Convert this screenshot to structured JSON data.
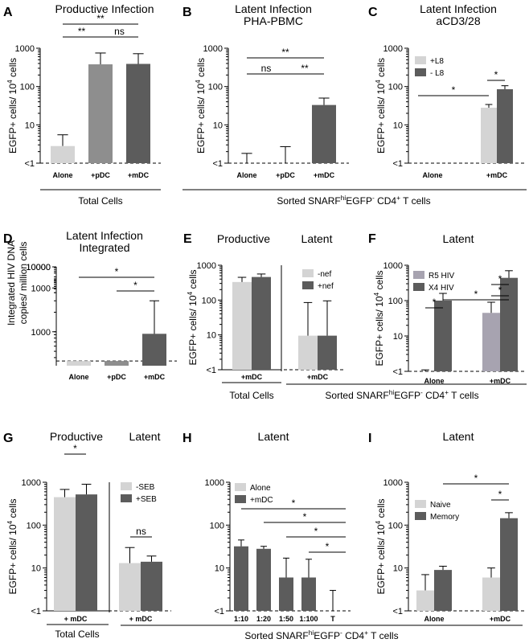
{
  "figure": {
    "bottom_group_label": "Sorted SNARF^hiEGFP^- CD4^+ T cells",
    "low_tick_label": "<1",
    "colors": {
      "light": "#d4d4d4",
      "mid": "#8e8e8e",
      "dark": "#5c5c5c",
      "purple": "#a7a3b0"
    }
  },
  "chart_data": [
    {
      "panel": "A",
      "type": "bar",
      "title": [
        "Productive Infection"
      ],
      "ylabel": "EGFP+ cells/ 10^4 cells",
      "yscale": "log",
      "ylim": [
        1,
        1000
      ],
      "floor_label": "<1",
      "categories": [
        "Alone",
        "+pDC",
        "+mDC"
      ],
      "series": [
        {
          "values": [
            2.8,
            380,
            390
          ],
          "errors": [
            5.5,
            750,
            720
          ]
        }
      ],
      "group_labels": [
        "Total Cells"
      ],
      "significance": [
        {
          "from": "Alone",
          "to": "+pDC",
          "label": "**"
        },
        {
          "from": "+pDC",
          "to": "+mDC",
          "label": "ns"
        },
        {
          "from": "Alone",
          "to": "+mDC",
          "label": "**"
        }
      ]
    },
    {
      "panel": "B",
      "type": "bar",
      "title": [
        "Latent Infection",
        "PHA-PBMC"
      ],
      "ylabel": "EGFP+ cells/ 10^4 cells",
      "yscale": "log",
      "ylim": [
        1,
        1000
      ],
      "floor_label": "<1",
      "categories": [
        "Alone",
        "+pDC",
        "+mDC"
      ],
      "series": [
        {
          "values": [
            1,
            1,
            33
          ],
          "errors": [
            1.8,
            2.7,
            50
          ]
        }
      ],
      "significance": [
        {
          "from": "Alone",
          "to": "+pDC",
          "label": "ns"
        },
        {
          "from": "+pDC",
          "to": "+mDC",
          "label": "**"
        },
        {
          "from": "Alone",
          "to": "+mDC",
          "label": "**"
        }
      ]
    },
    {
      "panel": "C",
      "type": "bar",
      "title": [
        "Latent Infection",
        "aCD3/28"
      ],
      "ylabel": "EGFP+ cells/ 10^4 cells",
      "yscale": "log",
      "ylim": [
        1,
        1000
      ],
      "floor_label": "<1",
      "categories": [
        "Alone",
        "+mDC"
      ],
      "legend": [
        "+L8",
        "- L8"
      ],
      "series": [
        {
          "name": "+L8",
          "values": [
            1,
            28
          ],
          "errors": [
            1,
            34
          ]
        },
        {
          "name": "- L8",
          "values": [
            1,
            85
          ],
          "errors": [
            1,
            105
          ]
        }
      ],
      "significance": [
        {
          "from": "Alone",
          "to": "+mDC +L8",
          "label": "*"
        },
        {
          "from": "+mDC +L8",
          "to": "+mDC - L8",
          "label": "*"
        }
      ]
    },
    {
      "panel": "D",
      "type": "bar",
      "title": [
        "Latent Infection",
        "Integrated"
      ],
      "ylabel": "Integrated HIV DNA copies/ million cells",
      "yscale": "log",
      "ylim": [
        300,
        10000
      ],
      "categories": [
        "Alone",
        "+pDC",
        "+mDC"
      ],
      "series": [
        {
          "values": [
            355,
            355,
            930
          ],
          "errors": [
            355,
            355,
            3000
          ]
        }
      ],
      "significance": [
        {
          "from": "Alone",
          "to": "+mDC",
          "label": "*"
        },
        {
          "from": "+pDC",
          "to": "+mDC",
          "label": "*"
        }
      ]
    },
    {
      "panel": "E",
      "type": "bar",
      "title": [
        "Productive",
        "Latent"
      ],
      "ylabel": "EGFP+ cells/ 10^4 cells",
      "yscale": "log",
      "ylim": [
        1,
        1000
      ],
      "floor_label": "<1",
      "categories": [
        "+mDC",
        "+mDC"
      ],
      "legend": [
        "-nef",
        "+nef"
      ],
      "series": [
        {
          "name": "-nef",
          "values": [
            330,
            9.5
          ],
          "errors": [
            450,
            85
          ]
        },
        {
          "name": "+nef",
          "values": [
            460,
            9.5
          ],
          "errors": [
            560,
            95
          ]
        }
      ],
      "group_labels": [
        "Total Cells"
      ]
    },
    {
      "panel": "F",
      "type": "bar",
      "title": [
        "Latent"
      ],
      "ylabel": "EGFP+ cells/ 10^4 cells",
      "yscale": "log",
      "ylim": [
        1,
        1000
      ],
      "floor_label": "<1",
      "categories": [
        "Alone",
        "+mDC"
      ],
      "legend": [
        "R5 HIV",
        "X4 HIV"
      ],
      "series": [
        {
          "name": "R5 HIV",
          "values": [
            1,
            45
          ],
          "errors": [
            1.1,
            90
          ]
        },
        {
          "name": "X4 HIV",
          "values": [
            100,
            440
          ],
          "errors": [
            160,
            700
          ]
        }
      ],
      "significance": [
        {
          "from": "Alone R5 HIV",
          "to": "Alone X4 HIV",
          "label": "*"
        },
        {
          "from": "Alone X4 HIV",
          "to": "+mDC X4 HIV",
          "label": "*"
        },
        {
          "from": "+mDC R5 HIV",
          "to": "+mDC X4 HIV",
          "label": "*"
        },
        {
          "from": "+mDC R5 HIV",
          "to": "+mDC X4 HIV",
          "label": "*"
        }
      ]
    },
    {
      "panel": "G",
      "type": "bar",
      "title": [
        "Productive",
        "Latent"
      ],
      "ylabel": "EGFP+ cells/ 10^4 cells",
      "yscale": "log",
      "ylim": [
        1,
        1000
      ],
      "floor_label": "<1",
      "categories": [
        "+ mDC",
        "+ mDC"
      ],
      "legend": [
        "-SEB",
        "+SEB"
      ],
      "series": [
        {
          "name": "-SEB",
          "values": [
            450,
            13
          ],
          "errors": [
            680,
            30
          ]
        },
        {
          "name": "+SEB",
          "values": [
            520,
            14
          ],
          "errors": [
            900,
            19
          ]
        }
      ],
      "group_labels": [
        "Total Cells"
      ],
      "significance": [
        {
          "from": "Productive -SEB",
          "to": "Productive +SEB",
          "label": "*"
        },
        {
          "from": "Latent -SEB",
          "to": "Latent +SEB",
          "label": "ns"
        }
      ]
    },
    {
      "panel": "H",
      "type": "bar",
      "title": [
        "Latent"
      ],
      "ylabel": "",
      "yscale": "log",
      "ylim": [
        1,
        1000
      ],
      "floor_label": "<1",
      "categories": [
        "1:10",
        "1:20",
        "1:50",
        "1:100",
        "T"
      ],
      "legend": [
        "Alone",
        "+mDC"
      ],
      "series": [
        {
          "values": [
            32,
            28,
            6,
            6,
            1
          ],
          "errors": [
            45,
            32,
            17,
            16,
            3
          ]
        }
      ],
      "significance": [
        {
          "from": "1:10",
          "to": "T",
          "label": "*"
        },
        {
          "from": "1:20",
          "to": "T",
          "label": "*"
        },
        {
          "from": "1:50",
          "to": "T",
          "label": "*"
        },
        {
          "from": "1:100",
          "to": "T",
          "label": "*"
        }
      ]
    },
    {
      "panel": "I",
      "type": "bar",
      "title": [
        "Latent"
      ],
      "ylabel": "EGFP+ cells/ 10^4 cells",
      "yscale": "log",
      "ylim": [
        1,
        1000
      ],
      "floor_label": "<1",
      "categories": [
        "Alone",
        "+mDC"
      ],
      "legend": [
        "Naive",
        "Memory"
      ],
      "series": [
        {
          "name": "Naive",
          "values": [
            3,
            6
          ],
          "errors": [
            7,
            10
          ]
        },
        {
          "name": "Memory",
          "values": [
            9,
            145
          ],
          "errors": [
            11,
            195
          ]
        }
      ],
      "significance": [
        {
          "from": "Alone Memory",
          "to": "+mDC Memory",
          "label": "*"
        },
        {
          "from": "+mDC Naive",
          "to": "+mDC Memory",
          "label": "*"
        }
      ]
    }
  ]
}
